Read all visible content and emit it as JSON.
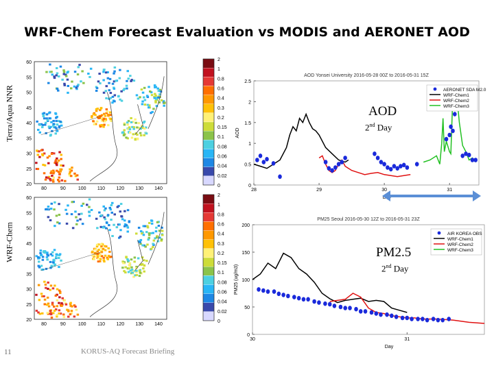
{
  "slide": {
    "title": "WRF-Chem Forecast Evaluation vs MODIS and AERONET AOD",
    "row_label_top": "Terra/Aqua NNR",
    "row_label_bottom": "WRF-Chem",
    "page_number": "11",
    "footer": "KORUS-AQ Forecast Briefing"
  },
  "maps": {
    "lat_ticks": [
      "60",
      "55",
      "50",
      "45",
      "40",
      "35",
      "30",
      "25",
      "20"
    ],
    "lon_ticks": [
      "80",
      "90",
      "100",
      "110",
      "120",
      "130",
      "140"
    ],
    "colorbar_labels": [
      "2",
      "1",
      "0.8",
      "0.6",
      "0.4",
      "0.3",
      "0.2",
      "0.15",
      "0.1",
      "0.08",
      "0.06",
      "0.04",
      "0.02",
      "0"
    ],
    "colorbar_colors": [
      "#7a0c12",
      "#c1121f",
      "#e53935",
      "#ff6f00",
      "#ff9800",
      "#ffc107",
      "#fff176",
      "#cddc39",
      "#8bc34a",
      "#4dd0e1",
      "#29b6f6",
      "#1e88e5",
      "#3949ab",
      "#d8d8ff"
    ]
  },
  "overlay": {
    "aod_label": "AOD",
    "aod_day_num": "2",
    "aod_day_sup": "nd",
    "aod_day_word": " Day",
    "pm_label": "PM2.5",
    "pm_day_num": "2",
    "pm_day_sup": "nd",
    "pm_day_word": " Day"
  },
  "chart_data": [
    {
      "type": "line",
      "title": "AOD Yonsei University 2016-05-28 00Z to 2016-05-31 15Z",
      "xlabel": "Day",
      "ylabel": "AOD",
      "xlim": [
        28,
        31.45
      ],
      "ylim": [
        0,
        2.5
      ],
      "x_ticks": [
        28,
        29,
        30,
        31
      ],
      "y_ticks": [
        0,
        0.5,
        1,
        1.5,
        2,
        2.5
      ],
      "x_tick_labels": [
        "28",
        "29",
        "30",
        "31"
      ],
      "y_tick_labels": [
        "0",
        "0.5",
        "1",
        "1.5",
        "2",
        "2.5"
      ],
      "legend": "top-right",
      "series": [
        {
          "name": "AERONET SDA M2.0",
          "style": "dots",
          "color": "#1a2adb",
          "x": [
            28.05,
            28.1,
            28.15,
            28.2,
            28.3,
            28.4,
            29.1,
            29.15,
            29.2,
            29.25,
            29.3,
            29.35,
            29.4,
            29.85,
            29.9,
            29.95,
            30.0,
            30.05,
            30.1,
            30.15,
            30.2,
            30.25,
            30.3,
            30.35,
            30.5,
            30.95,
            31.0,
            31.02,
            31.05,
            31.08,
            31.1,
            31.2,
            31.25,
            31.3,
            31.35,
            31.4
          ],
          "y": [
            0.6,
            0.7,
            0.55,
            0.62,
            0.52,
            0.2,
            0.55,
            0.4,
            0.35,
            0.42,
            0.5,
            0.55,
            0.65,
            0.75,
            0.65,
            0.55,
            0.5,
            0.42,
            0.38,
            0.45,
            0.4,
            0.45,
            0.48,
            0.42,
            0.5,
            1.1,
            1.2,
            1.4,
            1.3,
            1.7,
            2.1,
            0.7,
            0.75,
            0.72,
            0.6,
            0.6
          ]
        },
        {
          "name": "WRF-Chem1",
          "style": "line",
          "color": "#000000",
          "x": [
            28.0,
            28.1,
            28.2,
            28.3,
            28.4,
            28.5,
            28.55,
            28.6,
            28.65,
            28.7,
            28.75,
            28.8,
            28.85,
            28.9,
            28.95,
            29.0,
            29.1,
            29.2,
            29.3,
            29.4,
            29.45
          ],
          "y": [
            0.5,
            0.45,
            0.4,
            0.5,
            0.6,
            0.9,
            1.2,
            1.4,
            1.3,
            1.6,
            1.5,
            1.7,
            1.5,
            1.35,
            1.3,
            1.2,
            0.9,
            0.75,
            0.6,
            0.55,
            0.6
          ]
        },
        {
          "name": "WRF-Chem2",
          "style": "line",
          "color": "#e01010",
          "x": [
            29.0,
            29.05,
            29.1,
            29.15,
            29.2,
            29.25,
            29.3,
            29.35,
            29.4,
            29.45,
            29.5,
            29.6,
            29.7,
            29.8,
            29.9,
            30.0,
            30.2,
            30.4
          ],
          "y": [
            0.65,
            0.7,
            0.5,
            0.35,
            0.3,
            0.35,
            0.5,
            0.6,
            0.45,
            0.4,
            0.35,
            0.3,
            0.25,
            0.28,
            0.3,
            0.25,
            0.2,
            0.25
          ]
        },
        {
          "name": "WRF-Chem3",
          "style": "line",
          "color": "#22c022",
          "x": [
            30.6,
            30.7,
            30.8,
            30.85,
            30.88,
            30.9,
            30.92,
            30.95,
            31.0,
            31.02,
            31.05,
            31.08,
            31.1,
            31.12,
            31.15,
            31.2,
            31.25,
            31.3,
            31.35,
            31.4
          ],
          "y": [
            0.55,
            0.6,
            0.7,
            0.5,
            1.0,
            1.6,
            0.8,
            1.05,
            0.8,
            0.75,
            2.15,
            2.3,
            2.2,
            2.0,
            1.5,
            0.95,
            0.8,
            0.6,
            0.65,
            0.55
          ]
        }
      ]
    },
    {
      "type": "line",
      "title": "PM25 Seoul 2016-05-30 12Z to 2016-05-31 23Z",
      "xlabel": "Day",
      "ylabel": "PM25 (ug/m3)",
      "xlim": [
        30,
        31.5
      ],
      "ylim": [
        0,
        200
      ],
      "x_ticks": [
        30,
        31
      ],
      "y_ticks": [
        0,
        50,
        100,
        150,
        200
      ],
      "x_tick_labels": [
        "30",
        "31"
      ],
      "y_tick_labels": [
        "0",
        "50",
        "100",
        "150",
        "200"
      ],
      "legend": "top-right",
      "series": [
        {
          "name": "AIR KOREA OBS",
          "style": "dots",
          "color": "#1a2adb",
          "x": [
            30.04,
            30.07,
            30.1,
            30.14,
            30.17,
            30.2,
            30.23,
            30.27,
            30.3,
            30.33,
            30.36,
            30.4,
            30.43,
            30.47,
            30.5,
            30.53,
            30.57,
            30.6,
            30.63,
            30.67,
            30.7,
            30.73,
            30.77,
            30.8,
            30.83,
            30.87,
            30.9,
            30.93,
            30.97,
            31.0,
            31.03,
            31.07,
            31.1,
            31.13,
            31.17,
            31.2,
            31.23,
            31.27
          ],
          "y": [
            82,
            80,
            78,
            78,
            74,
            72,
            70,
            68,
            66,
            64,
            64,
            60,
            58,
            56,
            55,
            52,
            50,
            48,
            48,
            46,
            42,
            42,
            40,
            38,
            36,
            36,
            34,
            32,
            30,
            30,
            28,
            28,
            28,
            26,
            28,
            26,
            26,
            28
          ]
        },
        {
          "name": "WRF-Chem1",
          "style": "line",
          "color": "#000000",
          "x": [
            30.0,
            30.05,
            30.1,
            30.15,
            30.2,
            30.25,
            30.3,
            30.35,
            30.4,
            30.45,
            30.5,
            30.55,
            30.6,
            30.65,
            30.7,
            30.75,
            30.8,
            30.85,
            30.9,
            30.95,
            31.0
          ],
          "y": [
            100,
            110,
            130,
            120,
            148,
            140,
            120,
            110,
            95,
            75,
            65,
            58,
            62,
            64,
            66,
            60,
            62,
            60,
            48,
            44,
            40
          ]
        },
        {
          "name": "WRF-Chem2",
          "style": "line",
          "color": "#e01010",
          "x": [
            30.5,
            30.6,
            30.65,
            30.7,
            30.75,
            30.8,
            30.85,
            30.9,
            30.95,
            31.0,
            31.05,
            31.1,
            31.2,
            31.3,
            31.4,
            31.5
          ],
          "y": [
            60,
            64,
            75,
            68,
            48,
            40,
            38,
            34,
            32,
            30,
            30,
            28,
            28,
            26,
            22,
            20
          ]
        },
        {
          "name": "WRF-Chem3",
          "style": "line",
          "color": "#22c022",
          "x": [],
          "y": []
        }
      ]
    }
  ]
}
